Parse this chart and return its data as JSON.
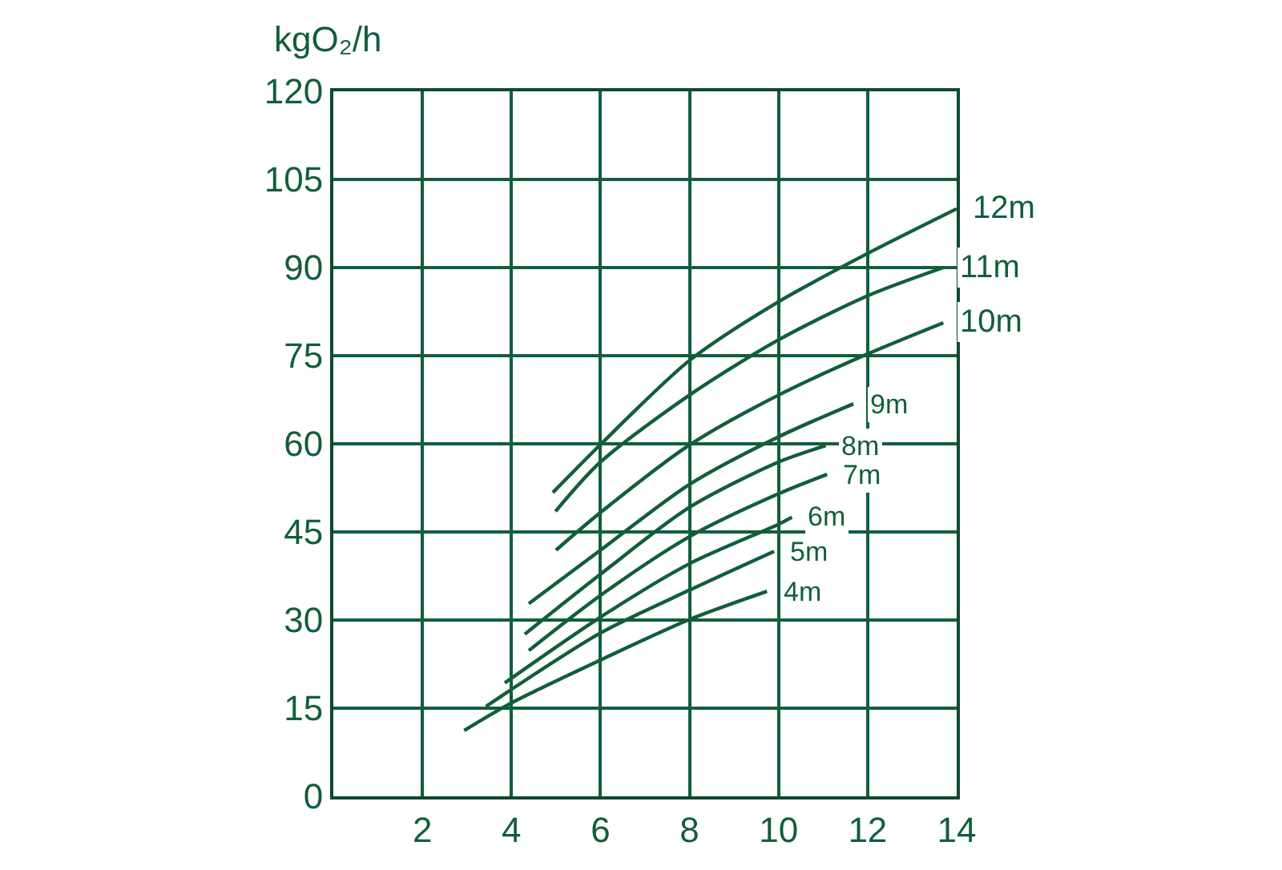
{
  "chart_data": {
    "type": "line",
    "ylabel": "kgO₂/h",
    "xlim": [
      0,
      14
    ],
    "xticks": [
      2,
      4,
      6,
      8,
      10,
      12,
      14
    ],
    "ylim": [
      0,
      120
    ],
    "yticks": [
      0,
      15,
      30,
      45,
      60,
      75,
      90,
      105,
      120
    ],
    "grid": true,
    "legend": false,
    "marker": "none",
    "line_style": "solid",
    "series": [
      {
        "name": "12m",
        "color": "#115e3b",
        "x": [
          4.93,
          6.03,
          8,
          10,
          12,
          14
        ],
        "values": [
          51.7,
          60.1,
          74.2,
          84.2,
          92.4,
          100
        ]
      },
      {
        "name": "11m",
        "color": "#115e3b",
        "x": [
          4.99,
          6,
          8,
          10,
          12,
          13.7
        ],
        "values": [
          48.5,
          56.9,
          68.3,
          77.7,
          85.2,
          90
        ]
      },
      {
        "name": "10m",
        "color": "#115e3b",
        "x": [
          5,
          6,
          8,
          10,
          12,
          13.7
        ],
        "values": [
          41.9,
          48.3,
          59.8,
          68.3,
          75.3,
          80.6
        ]
      },
      {
        "name": "9m",
        "color": "#115e3b",
        "x": [
          4.39,
          6,
          8,
          10,
          11.68
        ],
        "values": [
          32.8,
          41.9,
          53.1,
          61.2,
          66.8
        ]
      },
      {
        "name": "8m",
        "color": "#115e3b",
        "x": [
          4.3,
          6,
          8,
          10,
          11.06
        ],
        "values": [
          27.6,
          37.8,
          49.2,
          56.9,
          59.7
        ]
      },
      {
        "name": "7m",
        "color": "#115e3b",
        "x": [
          4.39,
          6,
          8,
          10,
          11.09
        ],
        "values": [
          24.8,
          34.2,
          44.2,
          51.5,
          54.8
        ]
      },
      {
        "name": "6m",
        "color": "#115e3b",
        "x": [
          3.85,
          6,
          8,
          10,
          10.3
        ],
        "values": [
          19.3,
          30.5,
          39.6,
          46.3,
          47.5
        ]
      },
      {
        "name": "5m",
        "color": "#115e3b",
        "x": [
          3.43,
          4,
          6,
          8,
          9.9
        ],
        "values": [
          15.3,
          18.2,
          27.8,
          35.1,
          41.7
        ]
      },
      {
        "name": "4m",
        "color": "#115e3b",
        "x": [
          2.94,
          4,
          6,
          8,
          9.74
        ],
        "values": [
          11.2,
          15.9,
          23.2,
          30.1,
          34.9
        ]
      }
    ]
  }
}
